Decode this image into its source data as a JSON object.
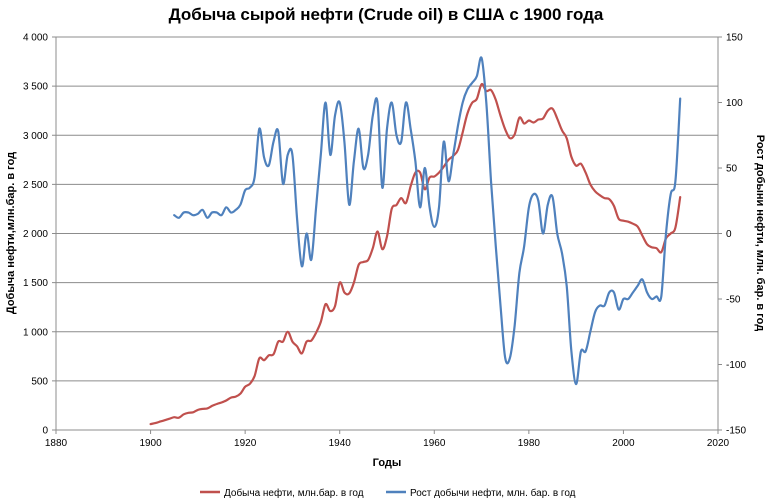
{
  "chart_data": {
    "type": "line",
    "title": "Добыча сырой нефти (Crude oil) в США с 1900 года",
    "xlabel": "Годы",
    "ylabel_left": "Добыча нефти,млн.бар. в год",
    "ylabel_right": "Рост добыни нефти, млн. бар. в год",
    "xlim": [
      1880,
      2020
    ],
    "ylim_left": [
      0,
      4000
    ],
    "ylim_right": [
      -150,
      150
    ],
    "x_ticks": [
      1880,
      1900,
      1920,
      1940,
      1960,
      1980,
      2000,
      2020
    ],
    "x_tick_labels": [
      "1880",
      "1900",
      "1920",
      "1940",
      "1960",
      "1980",
      "2000",
      "2020"
    ],
    "y_left_ticks": [
      0,
      500,
      1000,
      1500,
      2000,
      2500,
      3000,
      3500,
      4000
    ],
    "y_left_tick_labels": [
      "0",
      "500",
      "1 000",
      "1 500",
      "2 000",
      "2 500",
      "3 000",
      "3 500",
      "4 000"
    ],
    "y_right_ticks": [
      -150,
      -100,
      -50,
      0,
      50,
      100,
      150
    ],
    "y_right_tick_labels": [
      "-150",
      "-100",
      "-50",
      "0",
      "50",
      "100",
      "150"
    ],
    "grid": true,
    "legend_position": "bottom",
    "series": [
      {
        "name": "Добыча нефти, млн.бар. в год",
        "axis": "left",
        "color": "#c0504d",
        "points": [
          [
            1900,
            60
          ],
          [
            1901,
            70
          ],
          [
            1902,
            85
          ],
          [
            1903,
            100
          ],
          [
            1904,
            115
          ],
          [
            1905,
            130
          ],
          [
            1906,
            125
          ],
          [
            1907,
            160
          ],
          [
            1908,
            175
          ],
          [
            1909,
            180
          ],
          [
            1910,
            205
          ],
          [
            1911,
            215
          ],
          [
            1912,
            220
          ],
          [
            1913,
            245
          ],
          [
            1914,
            265
          ],
          [
            1915,
            280
          ],
          [
            1916,
            300
          ],
          [
            1917,
            330
          ],
          [
            1918,
            340
          ],
          [
            1919,
            370
          ],
          [
            1920,
            440
          ],
          [
            1921,
            470
          ],
          [
            1922,
            550
          ],
          [
            1923,
            730
          ],
          [
            1924,
            710
          ],
          [
            1925,
            760
          ],
          [
            1926,
            770
          ],
          [
            1927,
            900
          ],
          [
            1928,
            900
          ],
          [
            1929,
            1000
          ],
          [
            1930,
            900
          ],
          [
            1931,
            850
          ],
          [
            1932,
            780
          ],
          [
            1933,
            900
          ],
          [
            1934,
            910
          ],
          [
            1935,
            990
          ],
          [
            1936,
            1100
          ],
          [
            1937,
            1280
          ],
          [
            1938,
            1210
          ],
          [
            1939,
            1260
          ],
          [
            1940,
            1500
          ],
          [
            1941,
            1400
          ],
          [
            1942,
            1390
          ],
          [
            1943,
            1500
          ],
          [
            1944,
            1680
          ],
          [
            1945,
            1710
          ],
          [
            1946,
            1730
          ],
          [
            1947,
            1850
          ],
          [
            1948,
            2020
          ],
          [
            1949,
            1840
          ],
          [
            1950,
            1970
          ],
          [
            1951,
            2250
          ],
          [
            1952,
            2290
          ],
          [
            1953,
            2360
          ],
          [
            1954,
            2310
          ],
          [
            1955,
            2480
          ],
          [
            1956,
            2620
          ],
          [
            1957,
            2620
          ],
          [
            1958,
            2450
          ],
          [
            1959,
            2570
          ],
          [
            1960,
            2580
          ],
          [
            1961,
            2620
          ],
          [
            1962,
            2680
          ],
          [
            1963,
            2750
          ],
          [
            1964,
            2790
          ],
          [
            1965,
            2850
          ],
          [
            1966,
            3030
          ],
          [
            1967,
            3220
          ],
          [
            1968,
            3330
          ],
          [
            1969,
            3370
          ],
          [
            1970,
            3520
          ],
          [
            1971,
            3450
          ],
          [
            1972,
            3460
          ],
          [
            1973,
            3360
          ],
          [
            1974,
            3200
          ],
          [
            1975,
            3060
          ],
          [
            1976,
            2970
          ],
          [
            1977,
            3010
          ],
          [
            1978,
            3180
          ],
          [
            1979,
            3120
          ],
          [
            1980,
            3150
          ],
          [
            1981,
            3130
          ],
          [
            1982,
            3160
          ],
          [
            1983,
            3170
          ],
          [
            1984,
            3250
          ],
          [
            1985,
            3270
          ],
          [
            1986,
            3170
          ],
          [
            1987,
            3050
          ],
          [
            1988,
            2970
          ],
          [
            1989,
            2780
          ],
          [
            1990,
            2690
          ],
          [
            1991,
            2710
          ],
          [
            1992,
            2620
          ],
          [
            1993,
            2500
          ],
          [
            1994,
            2430
          ],
          [
            1995,
            2390
          ],
          [
            1996,
            2360
          ],
          [
            1997,
            2350
          ],
          [
            1998,
            2280
          ],
          [
            1999,
            2150
          ],
          [
            2000,
            2130
          ],
          [
            2001,
            2120
          ],
          [
            2002,
            2100
          ],
          [
            2003,
            2070
          ],
          [
            2004,
            1980
          ],
          [
            2005,
            1890
          ],
          [
            2006,
            1860
          ],
          [
            2007,
            1850
          ],
          [
            2008,
            1810
          ],
          [
            2009,
            1950
          ],
          [
            2010,
            2000
          ],
          [
            2011,
            2060
          ],
          [
            2012,
            2370
          ]
        ]
      },
      {
        "name": "Рост добычи нефти, млн. бар. в год",
        "axis": "right",
        "color": "#4f81bd",
        "points": [
          [
            1905,
            14
          ],
          [
            1906,
            12
          ],
          [
            1907,
            16
          ],
          [
            1908,
            16
          ],
          [
            1909,
            14
          ],
          [
            1910,
            15
          ],
          [
            1911,
            18
          ],
          [
            1912,
            12
          ],
          [
            1913,
            16
          ],
          [
            1914,
            16
          ],
          [
            1915,
            14
          ],
          [
            1916,
            20
          ],
          [
            1917,
            16
          ],
          [
            1918,
            18
          ],
          [
            1919,
            22
          ],
          [
            1920,
            33
          ],
          [
            1921,
            35
          ],
          [
            1922,
            43
          ],
          [
            1923,
            80
          ],
          [
            1924,
            58
          ],
          [
            1925,
            52
          ],
          [
            1926,
            70
          ],
          [
            1927,
            78
          ],
          [
            1928,
            38
          ],
          [
            1929,
            60
          ],
          [
            1930,
            60
          ],
          [
            1931,
            10
          ],
          [
            1932,
            -25
          ],
          [
            1933,
            0
          ],
          [
            1934,
            -20
          ],
          [
            1935,
            20
          ],
          [
            1936,
            60
          ],
          [
            1937,
            100
          ],
          [
            1938,
            60
          ],
          [
            1939,
            90
          ],
          [
            1940,
            100
          ],
          [
            1941,
            70
          ],
          [
            1942,
            22
          ],
          [
            1943,
            55
          ],
          [
            1944,
            80
          ],
          [
            1945,
            50
          ],
          [
            1946,
            60
          ],
          [
            1947,
            90
          ],
          [
            1948,
            100
          ],
          [
            1949,
            35
          ],
          [
            1950,
            80
          ],
          [
            1951,
            100
          ],
          [
            1952,
            75
          ],
          [
            1953,
            70
          ],
          [
            1954,
            100
          ],
          [
            1955,
            80
          ],
          [
            1956,
            55
          ],
          [
            1957,
            20
          ],
          [
            1958,
            50
          ],
          [
            1959,
            20
          ],
          [
            1960,
            5
          ],
          [
            1961,
            20
          ],
          [
            1962,
            70
          ],
          [
            1963,
            40
          ],
          [
            1964,
            60
          ],
          [
            1965,
            82
          ],
          [
            1966,
            100
          ],
          [
            1967,
            110
          ],
          [
            1968,
            115
          ],
          [
            1969,
            120
          ],
          [
            1970,
            134
          ],
          [
            1971,
            100
          ],
          [
            1972,
            40
          ],
          [
            1973,
            -10
          ],
          [
            1974,
            -55
          ],
          [
            1975,
            -95
          ],
          [
            1976,
            -95
          ],
          [
            1977,
            -70
          ],
          [
            1978,
            -30
          ],
          [
            1979,
            -10
          ],
          [
            1980,
            20
          ],
          [
            1981,
            30
          ],
          [
            1982,
            25
          ],
          [
            1983,
            0
          ],
          [
            1984,
            22
          ],
          [
            1985,
            28
          ],
          [
            1986,
            0
          ],
          [
            1987,
            -15
          ],
          [
            1988,
            -40
          ],
          [
            1989,
            -90
          ],
          [
            1990,
            -115
          ],
          [
            1991,
            -90
          ],
          [
            1992,
            -90
          ],
          [
            1993,
            -75
          ],
          [
            1994,
            -60
          ],
          [
            1995,
            -55
          ],
          [
            1996,
            -55
          ],
          [
            1997,
            -45
          ],
          [
            1998,
            -45
          ],
          [
            1999,
            -58
          ],
          [
            2000,
            -50
          ],
          [
            2001,
            -50
          ],
          [
            2002,
            -45
          ],
          [
            2003,
            -40
          ],
          [
            2004,
            -35
          ],
          [
            2005,
            -45
          ],
          [
            2006,
            -50
          ],
          [
            2007,
            -48
          ],
          [
            2008,
            -48
          ],
          [
            2009,
            0
          ],
          [
            2010,
            30
          ],
          [
            2011,
            40
          ],
          [
            2012,
            103
          ]
        ]
      }
    ]
  }
}
